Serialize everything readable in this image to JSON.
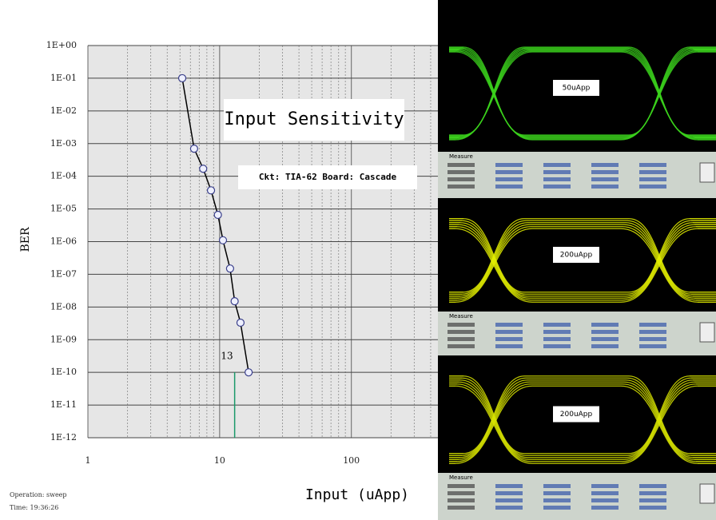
{
  "chart_data": {
    "type": "line",
    "title": "Input Sensitivity",
    "subtitle": "Ckt: TIA-62  Board: Cascade",
    "x_label": "Input (uApp)",
    "y_label": "BER",
    "x_scale": "log",
    "y_scale": "log",
    "grid": true,
    "xlim": [
      1,
      480
    ],
    "ylim": [
      1e-12,
      1
    ],
    "xticks": [
      1,
      10,
      100
    ],
    "yticks": [
      {
        "value": 1,
        "label": "1E+00"
      },
      {
        "value": 0.1,
        "label": "1E-01"
      },
      {
        "value": 0.01,
        "label": "1E-02"
      },
      {
        "value": 0.001,
        "label": "1E-03"
      },
      {
        "value": 0.0001,
        "label": "1E-04"
      },
      {
        "value": 1e-05,
        "label": "1E-05"
      },
      {
        "value": 1e-06,
        "label": "1E-06"
      },
      {
        "value": 1e-07,
        "label": "1E-07"
      },
      {
        "value": 1e-08,
        "label": "1E-08"
      },
      {
        "value": 1e-09,
        "label": "1E-09"
      },
      {
        "value": 1e-10,
        "label": "1E-10"
      },
      {
        "value": 1e-11,
        "label": "1E-11"
      },
      {
        "value": 1e-12,
        "label": "1E-12"
      }
    ],
    "x": [
      5.2,
      6.4,
      7.5,
      8.6,
      9.7,
      10.6,
      12,
      13,
      14.4,
      16.6
    ],
    "series": [
      {
        "name": "BER",
        "color": "#000000",
        "values": [
          0.1,
          0.0007,
          0.00017,
          3.7e-05,
          6.6e-06,
          1.1e-06,
          1.5e-07,
          1.5e-08,
          3.3e-09,
          1e-10
        ]
      }
    ],
    "annotation": {
      "text": "13",
      "x": 13,
      "color": "#1a9a6a"
    },
    "footer": [
      "Operation: sweep",
      "Time: 19:36:26"
    ]
  },
  "scope_panels": {
    "measure_tab": "Measure",
    "panels": [
      {
        "label": "50uApp",
        "color": "#3bd11c"
      },
      {
        "label": "200uApp",
        "color": "#e4f000"
      },
      {
        "label": "200uApp",
        "color": "#d8e400"
      }
    ]
  }
}
